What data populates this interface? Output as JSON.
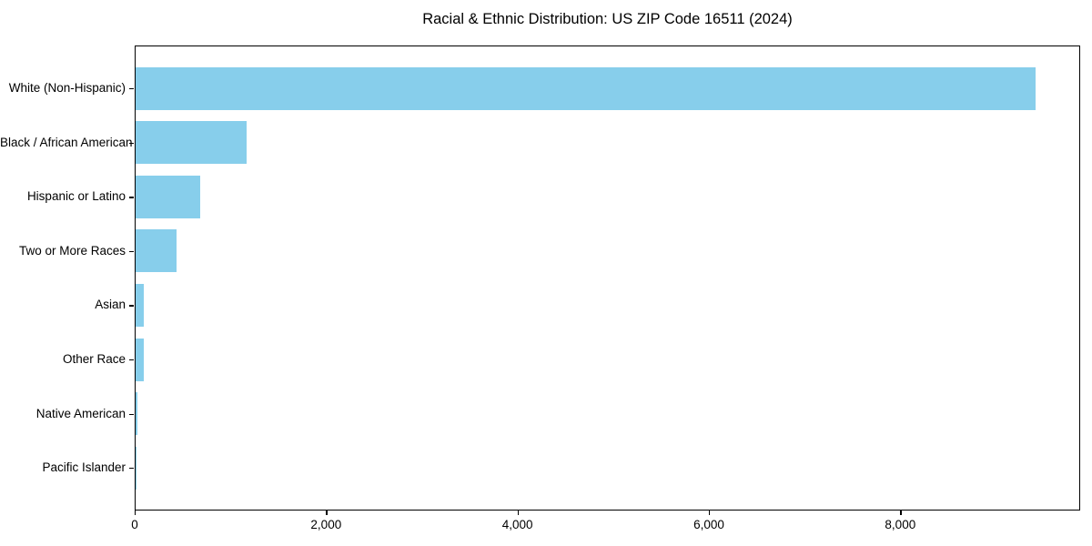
{
  "title": "Racial & Ethnic Distribution: US ZIP Code 16511 (2024)",
  "colors": {
    "bar": "#87ceeb",
    "axis": "#000000",
    "background": "#ffffff",
    "text": "#000000"
  },
  "chart_data": {
    "type": "bar",
    "orientation": "horizontal",
    "title": "Racial & Ethnic Distribution: US ZIP Code 16511 (2024)",
    "categories": [
      "White (Non-Hispanic)",
      "Black / African American",
      "Hispanic or Latino",
      "Two or More Races",
      "Asian",
      "Other Race",
      "Native American",
      "Pacific Islander"
    ],
    "values": [
      9400,
      1160,
      675,
      430,
      85,
      90,
      15,
      5
    ],
    "xlabel": "",
    "ylabel": "",
    "xlim": [
      0,
      9870
    ],
    "xticks": [
      0,
      2000,
      4000,
      6000,
      8000
    ],
    "xtick_labels": [
      "0",
      "2,000",
      "4,000",
      "6,000",
      "8,000"
    ],
    "bar_color": "#87ceeb",
    "grid": false,
    "legend": null
  }
}
